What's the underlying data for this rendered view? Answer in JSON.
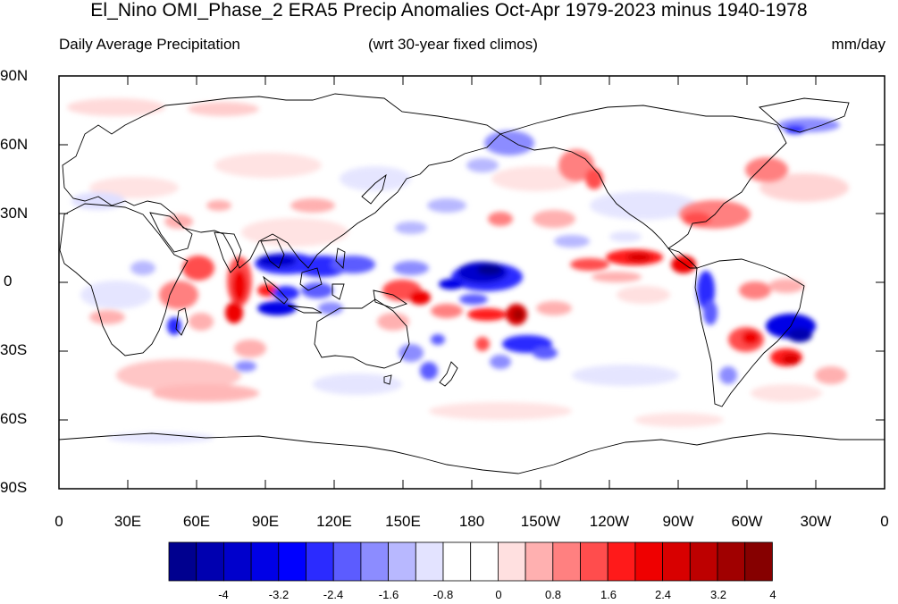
{
  "title": "El_Nino OMI_Phase_2 ERA5 Precip Anomalies Oct-Apr 1979-2023 minus 1940-1978",
  "subtitle_left": "Daily Average Precipitation",
  "subtitle_center": "(wrt 30-year fixed climos)",
  "subtitle_right": "mm/day",
  "lat_labels": [
    "90N",
    "60N",
    "30N",
    "0",
    "30S",
    "60S",
    "90S"
  ],
  "lon_labels": [
    "0",
    "30E",
    "60E",
    "90E",
    "120E",
    "150E",
    "180",
    "150W",
    "120W",
    "90W",
    "60W",
    "30W",
    "0"
  ],
  "colorbar": {
    "labels": [
      "-4",
      "-3.2",
      "-2.4",
      "-1.6",
      "-0.8",
      "0",
      "0.8",
      "1.6",
      "2.4",
      "3.2",
      "4"
    ],
    "colors": [
      "#00008f",
      "#0000b0",
      "#0000cc",
      "#0000e6",
      "#0000ff",
      "#2b2bff",
      "#5c5cff",
      "#8c8cff",
      "#b8b8ff",
      "#e3e3ff",
      "#ffffff",
      "#ffffff",
      "#ffe0e0",
      "#ffb0b0",
      "#ff8080",
      "#ff4d4d",
      "#ff1a1a",
      "#ef0000",
      "#d80000",
      "#bd0000",
      "#a00000",
      "#860000"
    ]
  }
}
